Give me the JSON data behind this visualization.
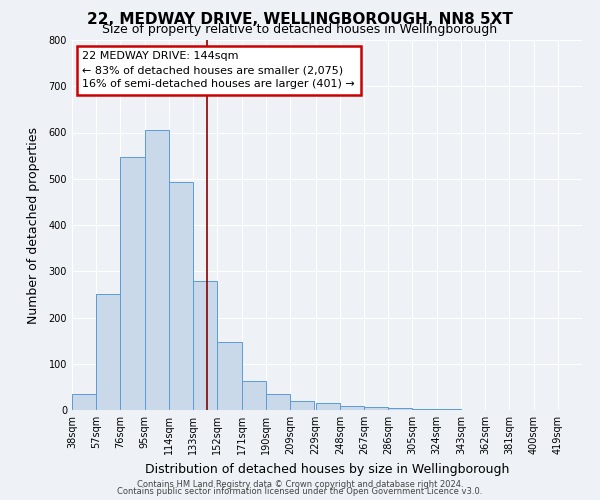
{
  "title": "22, MEDWAY DRIVE, WELLINGBOROUGH, NN8 5XT",
  "subtitle": "Size of property relative to detached houses in Wellingborough",
  "xlabel": "Distribution of detached houses by size in Wellingborough",
  "ylabel": "Number of detached properties",
  "footnote1": "Contains HM Land Registry data © Crown copyright and database right 2024.",
  "footnote2": "Contains public sector information licensed under the Open Government Licence v3.0.",
  "bar_edges": [
    38,
    57,
    76,
    95,
    114,
    133,
    152,
    171,
    190,
    209,
    229,
    248,
    267,
    286,
    305,
    324,
    343,
    362,
    381,
    400,
    419
  ],
  "bar_heights": [
    35,
    250,
    548,
    605,
    493,
    278,
    148,
    62,
    35,
    20,
    15,
    8,
    6,
    4,
    3,
    2,
    1,
    1,
    0,
    1
  ],
  "bar_color": "#c9d9ea",
  "bar_edge_color": "#5b9bd5",
  "vline_x": 144,
  "vline_color": "#8b0000",
  "annotation_line1": "22 MEDWAY DRIVE: 144sqm",
  "annotation_line2": "← 83% of detached houses are smaller (2,075)",
  "annotation_line3": "16% of semi-detached houses are larger (401) →",
  "annotation_box_color": "#cc0000",
  "annotation_bg": "#ffffff",
  "ylim": [
    0,
    800
  ],
  "yticks": [
    0,
    100,
    200,
    300,
    400,
    500,
    600,
    700,
    800
  ],
  "tick_labels": [
    "38sqm",
    "57sqm",
    "76sqm",
    "95sqm",
    "114sqm",
    "133sqm",
    "152sqm",
    "171sqm",
    "190sqm",
    "209sqm",
    "229sqm",
    "248sqm",
    "267sqm",
    "286sqm",
    "305sqm",
    "324sqm",
    "343sqm",
    "362sqm",
    "381sqm",
    "400sqm",
    "419sqm"
  ],
  "bg_color": "#eef2f7",
  "grid_color": "#ffffff",
  "title_fontsize": 11,
  "subtitle_fontsize": 9,
  "axis_label_fontsize": 9,
  "tick_fontsize": 7,
  "annotation_fontsize": 8,
  "footnote_fontsize": 6
}
